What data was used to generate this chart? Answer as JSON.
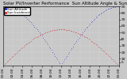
{
  "title": "Solar PV/Inverter Performance  Sun Altitude Angle & Sun Incidence Angle on PV Panels",
  "legend_blue": "Sun Altitude",
  "legend_red": "Sun Incidence",
  "bg_color": "#c8c8c8",
  "plot_bg": "#c8c8c8",
  "blue_color": "#0000cc",
  "red_color": "#cc0000",
  "ylim": [
    0,
    90
  ],
  "xlim": [
    0,
    96
  ],
  "ytick_vals": [
    5,
    10,
    20,
    30,
    40,
    50,
    60,
    70,
    80,
    90
  ],
  "ytick_labels": [
    "5",
    "10",
    "20",
    "30",
    "40",
    "50",
    "60",
    "70",
    "80",
    "90"
  ],
  "xtick_positions": [
    0,
    8,
    16,
    24,
    32,
    40,
    48,
    56,
    64,
    72,
    80,
    88,
    96
  ],
  "xtick_labels": [
    "00:00",
    "02:00",
    "04:00",
    "06:00",
    "08:00",
    "10:00",
    "12:00",
    "14:00",
    "16:00",
    "18:00",
    "20:00",
    "22:00",
    "00:00"
  ],
  "title_fontsize": 4.0,
  "tick_fontsize": 3.2
}
